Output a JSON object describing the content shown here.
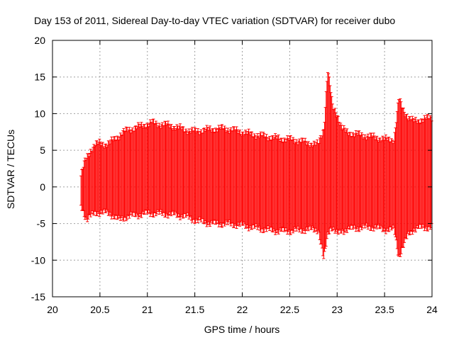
{
  "chart_data": {
    "type": "errorbar",
    "title": "Day 153 of 2011, Sidereal Day-to-day VTEC variation (SDTVAR) for receiver dubo",
    "xlabel": "GPS time / hours",
    "ylabel": "SDTVAR / TECUs",
    "xlim": [
      20,
      24
    ],
    "ylim": [
      -15,
      20
    ],
    "xticks": [
      20,
      20.5,
      21,
      21.5,
      22,
      22.5,
      23,
      23.5,
      24
    ],
    "xtick_labels": [
      "20",
      "20.5",
      "21",
      "21.5",
      "22",
      "22.5",
      "23",
      "23.5",
      "24"
    ],
    "yticks": [
      -15,
      -10,
      -5,
      0,
      5,
      10,
      15,
      20
    ],
    "ytick_labels": [
      "-15",
      "-10",
      "-5",
      "0",
      "5",
      "10",
      "15",
      "20"
    ],
    "grid": true,
    "series_color": "#ff0000",
    "envelope": {
      "x": [
        20.3,
        20.33,
        20.36,
        20.4,
        20.45,
        20.5,
        20.55,
        20.6,
        20.65,
        20.7,
        20.75,
        20.8,
        20.9,
        21.0,
        21.05,
        21.1,
        21.2,
        21.3,
        21.4,
        21.5,
        21.6,
        21.7,
        21.8,
        21.9,
        22.0,
        22.1,
        22.2,
        22.3,
        22.4,
        22.5,
        22.6,
        22.7,
        22.8,
        22.86,
        22.9,
        22.93,
        22.95,
        23.0,
        23.05,
        23.1,
        23.2,
        23.3,
        23.4,
        23.5,
        23.6,
        23.65,
        23.7,
        23.75,
        23.8,
        23.9,
        24.0
      ],
      "upper": [
        1.5,
        3.0,
        4.0,
        5.0,
        5.8,
        6.0,
        5.8,
        6.0,
        6.5,
        7.0,
        7.5,
        7.8,
        8.2,
        8.6,
        8.8,
        8.6,
        8.5,
        8.2,
        7.8,
        7.6,
        7.8,
        7.9,
        8.0,
        7.8,
        7.5,
        7.2,
        7.0,
        6.8,
        6.6,
        6.5,
        6.3,
        6.0,
        5.8,
        8.0,
        16.0,
        13.5,
        11.0,
        10.0,
        8.0,
        7.5,
        7.2,
        7.0,
        6.8,
        6.5,
        6.5,
        12.0,
        10.5,
        9.5,
        9.0,
        9.2,
        9.5
      ],
      "lower": [
        -2.5,
        -3.5,
        -4.5,
        -4.0,
        -3.5,
        -3.5,
        -3.5,
        -3.6,
        -4.0,
        -4.5,
        -4.2,
        -4.0,
        -3.8,
        -3.6,
        -3.6,
        -3.6,
        -3.7,
        -3.8,
        -4.0,
        -4.5,
        -4.8,
        -5.0,
        -5.0,
        -5.1,
        -5.2,
        -5.5,
        -5.7,
        -5.9,
        -6.0,
        -6.0,
        -5.9,
        -5.8,
        -5.8,
        -10.0,
        -6.5,
        -5.5,
        -5.5,
        -6.5,
        -6.0,
        -5.8,
        -5.6,
        -5.5,
        -5.5,
        -5.8,
        -5.8,
        -9.5,
        -8.0,
        -6.5,
        -5.8,
        -5.5,
        -5.5
      ]
    }
  }
}
